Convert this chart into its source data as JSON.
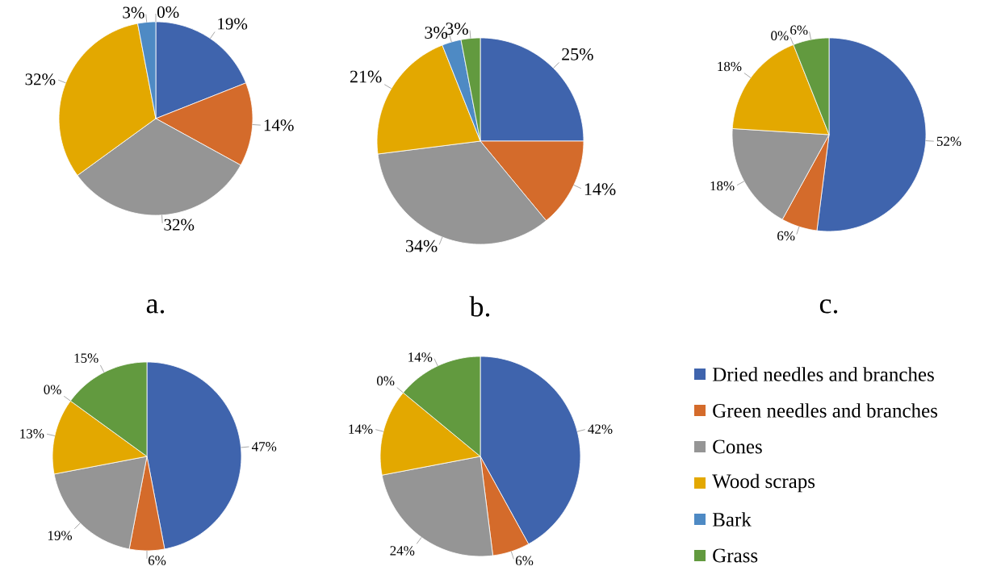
{
  "chart_data": [
    {
      "type": "pie",
      "title": "a.",
      "categories": [
        null,
        null,
        null,
        null,
        null,
        null
      ],
      "values": [
        19,
        14,
        32,
        32,
        3,
        0
      ],
      "colors": [
        "#3f64ad",
        "#d46b2b",
        "#959595",
        "#e3a800",
        "#4e8ac4",
        "#629a3f"
      ],
      "value_labels": [
        "19%",
        "14%",
        "32%",
        "32%",
        "3%",
        "0%"
      ]
    },
    {
      "type": "pie",
      "title": "b.",
      "categories": [
        null,
        null,
        null,
        null,
        null,
        null
      ],
      "values": [
        25,
        14,
        34,
        21,
        3,
        3
      ],
      "colors": [
        "#3f64ad",
        "#d46b2b",
        "#959595",
        "#e3a800",
        "#4e8ac4",
        "#629a3f"
      ],
      "value_labels": [
        "25%",
        "14%",
        "34%",
        "21%",
        "3%",
        "3%"
      ]
    },
    {
      "type": "pie",
      "title": "c.",
      "categories": [
        null,
        null,
        null,
        null,
        null,
        null
      ],
      "values": [
        52,
        6,
        18,
        18,
        0,
        6
      ],
      "colors": [
        "#3f64ad",
        "#d46b2b",
        "#959595",
        "#e3a800",
        "#4e8ac4",
        "#629a3f"
      ],
      "value_labels": [
        "52%",
        "6%",
        "18%",
        "18%",
        "0%",
        "6%"
      ]
    },
    {
      "type": "pie",
      "categories": [
        null,
        null,
        null,
        null,
        null,
        null
      ],
      "values": [
        47,
        6,
        19,
        13,
        0,
        15
      ],
      "colors": [
        "#3f64ad",
        "#d46b2b",
        "#959595",
        "#e3a800",
        "#4e8ac4",
        "#629a3f"
      ],
      "value_labels": [
        "47%",
        "6%",
        "19%",
        "13%",
        "0%",
        "15%"
      ]
    },
    {
      "type": "pie",
      "categories": [
        "Dried needles and branches",
        "Green needles and branches",
        "Cones",
        "Wood scraps",
        "Bark",
        "Grass"
      ],
      "values": [
        42,
        6,
        24,
        14,
        0,
        14
      ],
      "colors": [
        "#3f64ad",
        "#d46b2b",
        "#959595",
        "#e3a800",
        "#4e8ac4",
        "#629a3f"
      ],
      "value_labels": [
        "42%",
        "6%",
        "24%",
        "14%",
        "0%",
        "14%"
      ],
      "legend": "right"
    }
  ]
}
